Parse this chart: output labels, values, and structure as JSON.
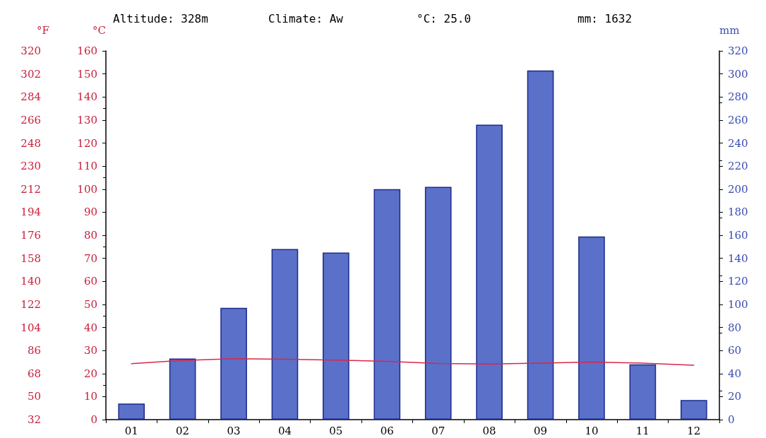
{
  "chart_data": {
    "type": "bar",
    "ylabel": "°C",
    "y2label": "mm",
    "y3label": "°F",
    "annotations": [
      "Altitude: 328m",
      "Climate: Aw",
      "°C: 25.0",
      "mm: 1632"
    ],
    "categories": [
      "01",
      "02",
      "03",
      "04",
      "05",
      "06",
      "07",
      "08",
      "09",
      "10",
      "11",
      "12"
    ],
    "series": [
      {
        "axis": "y2",
        "color": "#5b70c9",
        "values": [
          14,
          53,
          97,
          148,
          145,
          200,
          202,
          256,
          303,
          159,
          48,
          17
        ]
      },
      {
        "type": "line",
        "axis": "y",
        "color": "#d8284a",
        "marker": "none",
        "line_style": "solid",
        "values": [
          24.3,
          25.7,
          26.4,
          26.2,
          25.8,
          25.3,
          24.4,
          24.1,
          24.5,
          25.0,
          24.5,
          23.6
        ]
      }
    ],
    "ylim": [
      0,
      160
    ],
    "yticks": [
      0,
      10,
      20,
      30,
      40,
      50,
      60,
      70,
      80,
      90,
      100,
      110,
      120,
      130,
      140,
      150,
      160
    ],
    "y2lim": [
      0,
      320
    ],
    "y2ticks": [
      0,
      20,
      40,
      60,
      80,
      100,
      120,
      140,
      160,
      180,
      200,
      220,
      240,
      260,
      280,
      300,
      320
    ],
    "y3lim": [
      32,
      320
    ],
    "y3ticks": [
      32,
      50,
      68,
      86,
      104,
      122,
      140,
      158,
      176,
      194,
      212,
      230,
      248,
      266,
      284,
      302,
      320
    ],
    "grid": false
  }
}
